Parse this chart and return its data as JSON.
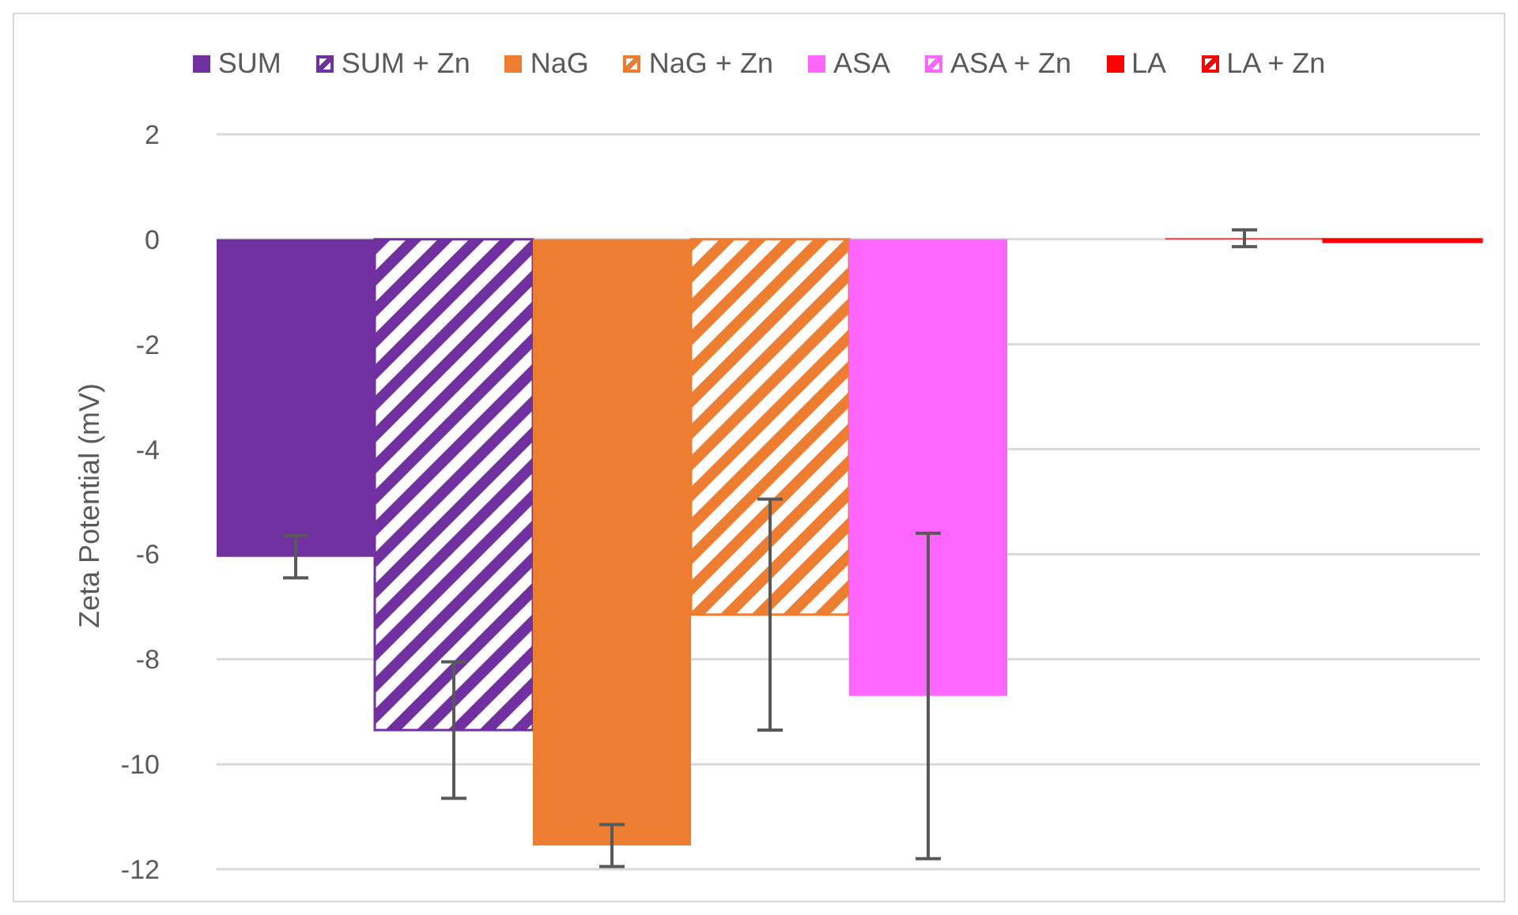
{
  "chart_data": {
    "type": "bar",
    "ylabel": "Zeta Potential (mV)",
    "categories": [
      null
    ],
    "series": [
      {
        "name": "SUM",
        "color": "#7030a0",
        "values": [
          -6.05
        ],
        "errors": [
          0.4
        ]
      },
      {
        "name": "SUM + Zn",
        "color": "#7030a0",
        "values": [
          -9.35
        ],
        "errors": [
          1.3
        ]
      },
      {
        "name": "NaG",
        "color": "#ed7d31",
        "values": [
          -11.55
        ],
        "errors": [
          0.4
        ]
      },
      {
        "name": "NaG + Zn",
        "color": "#ed7d31",
        "values": [
          -7.15
        ],
        "errors": [
          2.2
        ]
      },
      {
        "name": "ASA",
        "color": "#ff66ff",
        "values": [
          -8.7
        ],
        "errors": [
          3.1
        ]
      },
      {
        "name": "ASA + Zn",
        "color": "#ff66ff",
        "values": [
          null
        ],
        "errors": [
          null
        ]
      },
      {
        "name": "LA",
        "color": "#ff0000",
        "values": [
          0.02
        ],
        "errors": [
          0.16
        ]
      },
      {
        "name": "LA + Zn",
        "color": "#ff0000",
        "values": [
          -0.05
        ],
        "errors": [
          null
        ]
      }
    ],
    "ylim": [
      -12,
      2
    ],
    "yticks": [
      -12,
      -10,
      -8,
      -6,
      -4,
      -2,
      0,
      2
    ],
    "grid": "y",
    "legend": "top",
    "tick_labels": "y"
  }
}
